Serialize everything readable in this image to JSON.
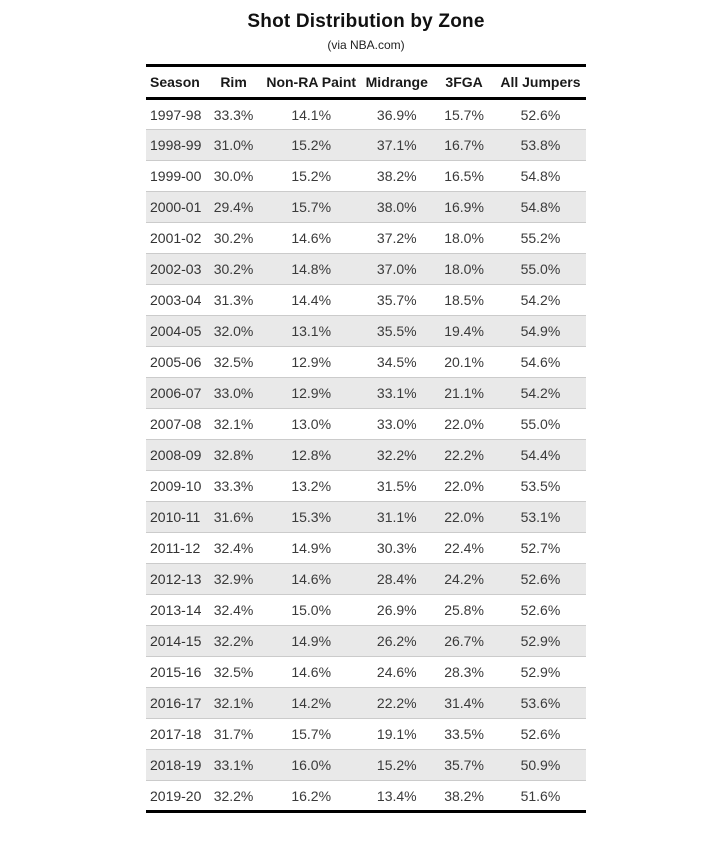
{
  "title": "Shot Distribution by Zone",
  "subtitle": "(via NBA.com)",
  "colors": {
    "stripe_row": "#e9e9e9",
    "row_divider": "#cbcbcb",
    "rule": "#000000",
    "body_text": "#3a3a3a",
    "header_text": "#1a1a1a"
  },
  "chart_data": {
    "type": "table",
    "title": "Shot Distribution by Zone",
    "subtitle": "(via NBA.com)",
    "columns": [
      "Season",
      "Rim",
      "Non-RA Paint",
      "Midrange",
      "3FGA",
      "All Jumpers"
    ],
    "rows": [
      [
        "1997-98",
        "33.3%",
        "14.1%",
        "36.9%",
        "15.7%",
        "52.6%"
      ],
      [
        "1998-99",
        "31.0%",
        "15.2%",
        "37.1%",
        "16.7%",
        "53.8%"
      ],
      [
        "1999-00",
        "30.0%",
        "15.2%",
        "38.2%",
        "16.5%",
        "54.8%"
      ],
      [
        "2000-01",
        "29.4%",
        "15.7%",
        "38.0%",
        "16.9%",
        "54.8%"
      ],
      [
        "2001-02",
        "30.2%",
        "14.6%",
        "37.2%",
        "18.0%",
        "55.2%"
      ],
      [
        "2002-03",
        "30.2%",
        "14.8%",
        "37.0%",
        "18.0%",
        "55.0%"
      ],
      [
        "2003-04",
        "31.3%",
        "14.4%",
        "35.7%",
        "18.5%",
        "54.2%"
      ],
      [
        "2004-05",
        "32.0%",
        "13.1%",
        "35.5%",
        "19.4%",
        "54.9%"
      ],
      [
        "2005-06",
        "32.5%",
        "12.9%",
        "34.5%",
        "20.1%",
        "54.6%"
      ],
      [
        "2006-07",
        "33.0%",
        "12.9%",
        "33.1%",
        "21.1%",
        "54.2%"
      ],
      [
        "2007-08",
        "32.1%",
        "13.0%",
        "33.0%",
        "22.0%",
        "55.0%"
      ],
      [
        "2008-09",
        "32.8%",
        "12.8%",
        "32.2%",
        "22.2%",
        "54.4%"
      ],
      [
        "2009-10",
        "33.3%",
        "13.2%",
        "31.5%",
        "22.0%",
        "53.5%"
      ],
      [
        "2010-11",
        "31.6%",
        "15.3%",
        "31.1%",
        "22.0%",
        "53.1%"
      ],
      [
        "2011-12",
        "32.4%",
        "14.9%",
        "30.3%",
        "22.4%",
        "52.7%"
      ],
      [
        "2012-13",
        "32.9%",
        "14.6%",
        "28.4%",
        "24.2%",
        "52.6%"
      ],
      [
        "2013-14",
        "32.4%",
        "15.0%",
        "26.9%",
        "25.8%",
        "52.6%"
      ],
      [
        "2014-15",
        "32.2%",
        "14.9%",
        "26.2%",
        "26.7%",
        "52.9%"
      ],
      [
        "2015-16",
        "32.5%",
        "14.6%",
        "24.6%",
        "28.3%",
        "52.9%"
      ],
      [
        "2016-17",
        "32.1%",
        "14.2%",
        "22.2%",
        "31.4%",
        "53.6%"
      ],
      [
        "2017-18",
        "31.7%",
        "15.7%",
        "19.1%",
        "33.5%",
        "52.6%"
      ],
      [
        "2018-19",
        "33.1%",
        "16.0%",
        "15.2%",
        "35.7%",
        "50.9%"
      ],
      [
        "2019-20",
        "32.2%",
        "16.2%",
        "13.4%",
        "38.2%",
        "51.6%"
      ]
    ]
  }
}
